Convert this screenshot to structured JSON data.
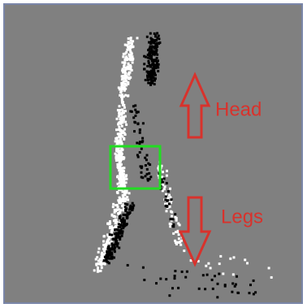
{
  "annotations": {
    "head": "Head",
    "legs": "Legs"
  }
}
